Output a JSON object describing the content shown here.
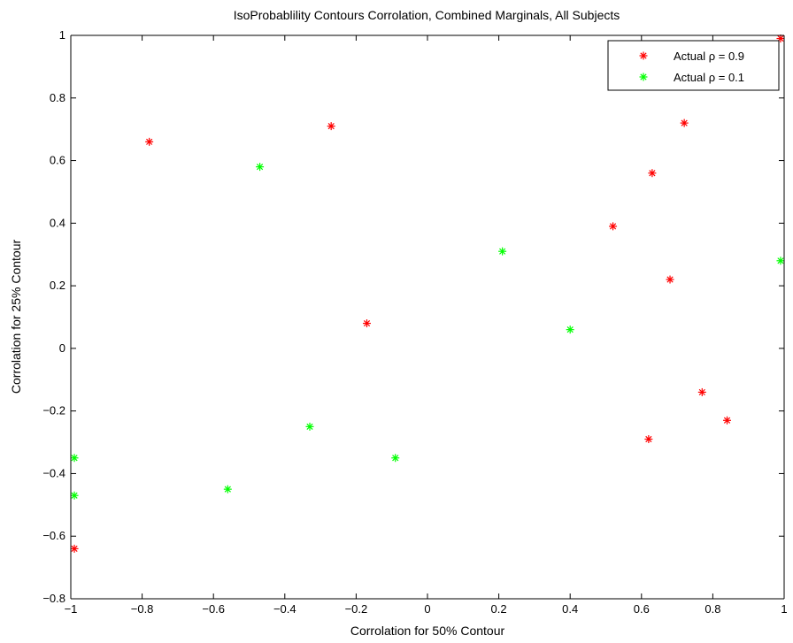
{
  "chart_data": {
    "type": "scatter",
    "title": "IsoProbablility Contours Corrolation, Combined Marginals, All Subjects",
    "xlabel": "Corrolation for 50% Contour",
    "ylabel": "Corrolation for 25% Contour",
    "xlim": [
      -1,
      1
    ],
    "ylim": [
      -0.8,
      1
    ],
    "xticks": [
      -1,
      -0.8,
      -0.6,
      -0.4,
      -0.2,
      0,
      0.2,
      0.4,
      0.6,
      0.8,
      1
    ],
    "yticks": [
      -0.8,
      -0.6,
      -0.4,
      -0.2,
      0,
      0.2,
      0.4,
      0.6,
      0.8,
      1
    ],
    "xtick_labels": [
      "−1",
      "−0.8",
      "−0.6",
      "−0.4",
      "−0.2",
      "0",
      "0.2",
      "0.4",
      "0.6",
      "0.8",
      "1"
    ],
    "ytick_labels": [
      "−0.8",
      "−0.6",
      "−0.4",
      "−0.2",
      "0",
      "0.2",
      "0.4",
      "0.6",
      "0.8",
      "1"
    ],
    "grid": false,
    "legend_position": "top-right",
    "marker": "asterisk",
    "series": [
      {
        "name": "Actual ρ = 0.9",
        "color": "#ff0000",
        "points": [
          [
            -0.78,
            0.66
          ],
          [
            -0.27,
            0.71
          ],
          [
            -0.17,
            0.08
          ],
          [
            0.52,
            0.39
          ],
          [
            0.63,
            0.56
          ],
          [
            0.72,
            0.72
          ],
          [
            0.68,
            0.22
          ],
          [
            0.99,
            0.99
          ],
          [
            0.77,
            -0.14
          ],
          [
            0.84,
            -0.23
          ],
          [
            0.62,
            -0.29
          ],
          [
            -0.99,
            -0.64
          ]
        ]
      },
      {
        "name": "Actual ρ = 0.1",
        "color": "#00ff00",
        "points": [
          [
            -0.47,
            0.58
          ],
          [
            0.21,
            0.31
          ],
          [
            0.4,
            0.06
          ],
          [
            0.99,
            0.28
          ],
          [
            -0.33,
            -0.25
          ],
          [
            -0.09,
            -0.35
          ],
          [
            -0.56,
            -0.45
          ],
          [
            -0.99,
            -0.35
          ],
          [
            -0.99,
            -0.47
          ]
        ]
      }
    ]
  }
}
